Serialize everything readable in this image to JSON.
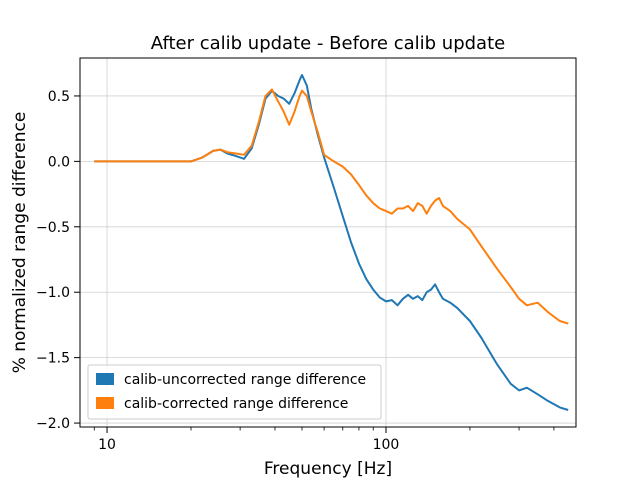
{
  "chart_data": {
    "type": "line",
    "title": "After calib update - Before calib update",
    "xlabel": "Frequency [Hz]",
    "ylabel": "% normalized range difference",
    "xscale": "log",
    "xlim": [
      8,
      480
    ],
    "ylim": [
      -2.03,
      0.79
    ],
    "xticks": [
      {
        "value": 10,
        "label": "10"
      },
      {
        "value": 100,
        "label": "100"
      }
    ],
    "yticks": [
      {
        "value": 0.5,
        "label": "0.5"
      },
      {
        "value": 0.0,
        "label": "0.0"
      },
      {
        "value": -0.5,
        "label": "−0.5"
      },
      {
        "value": -1.0,
        "label": "−1.0"
      },
      {
        "value": -1.5,
        "label": "−1.5"
      },
      {
        "value": -2.0,
        "label": "−2.0"
      }
    ],
    "grid": true,
    "legend_position": "lower-left",
    "series": [
      {
        "name": "calib-uncorrected range difference",
        "color": "#1f77b4",
        "x": [
          9,
          12,
          16,
          20,
          22,
          24,
          25.5,
          27,
          29,
          31,
          33,
          35,
          37,
          39,
          41,
          43,
          45,
          47,
          49,
          50,
          52,
          54,
          57,
          60,
          65,
          70,
          75,
          80,
          85,
          90,
          95,
          100,
          105,
          110,
          115,
          120,
          125,
          130,
          135,
          140,
          145,
          150,
          155,
          160,
          170,
          180,
          200,
          220,
          250,
          280,
          300,
          320,
          350,
          380,
          420,
          450
        ],
        "y": [
          0.0,
          0.0,
          0.0,
          0.0,
          0.03,
          0.08,
          0.09,
          0.06,
          0.04,
          0.02,
          0.1,
          0.28,
          0.48,
          0.54,
          0.5,
          0.48,
          0.44,
          0.52,
          0.62,
          0.66,
          0.58,
          0.4,
          0.2,
          0.03,
          -0.2,
          -0.42,
          -0.62,
          -0.78,
          -0.9,
          -0.98,
          -1.04,
          -1.07,
          -1.06,
          -1.1,
          -1.05,
          -1.02,
          -1.05,
          -1.03,
          -1.06,
          -1.0,
          -0.98,
          -0.94,
          -1.0,
          -1.05,
          -1.08,
          -1.12,
          -1.22,
          -1.35,
          -1.55,
          -1.7,
          -1.75,
          -1.73,
          -1.78,
          -1.83,
          -1.88,
          -1.9
        ]
      },
      {
        "name": "calib-corrected range difference",
        "color": "#ff7f0e",
        "x": [
          9,
          12,
          16,
          20,
          22,
          24,
          25.5,
          27,
          29,
          31,
          33,
          35,
          37,
          39,
          41,
          43,
          45,
          47,
          49,
          50,
          52,
          54,
          57,
          60,
          65,
          70,
          75,
          80,
          85,
          90,
          95,
          100,
          105,
          110,
          115,
          120,
          125,
          130,
          135,
          140,
          145,
          150,
          155,
          160,
          170,
          180,
          200,
          220,
          250,
          280,
          300,
          320,
          350,
          380,
          420,
          450
        ],
        "y": [
          0.0,
          0.0,
          0.0,
          0.0,
          0.03,
          0.08,
          0.09,
          0.07,
          0.06,
          0.05,
          0.12,
          0.3,
          0.5,
          0.55,
          0.46,
          0.38,
          0.28,
          0.38,
          0.5,
          0.54,
          0.5,
          0.38,
          0.22,
          0.05,
          0.0,
          -0.04,
          -0.1,
          -0.18,
          -0.26,
          -0.32,
          -0.36,
          -0.38,
          -0.4,
          -0.36,
          -0.36,
          -0.34,
          -0.38,
          -0.32,
          -0.34,
          -0.4,
          -0.34,
          -0.3,
          -0.28,
          -0.34,
          -0.38,
          -0.44,
          -0.52,
          -0.65,
          -0.82,
          -0.96,
          -1.05,
          -1.1,
          -1.08,
          -1.15,
          -1.22,
          -1.24
        ]
      }
    ]
  }
}
